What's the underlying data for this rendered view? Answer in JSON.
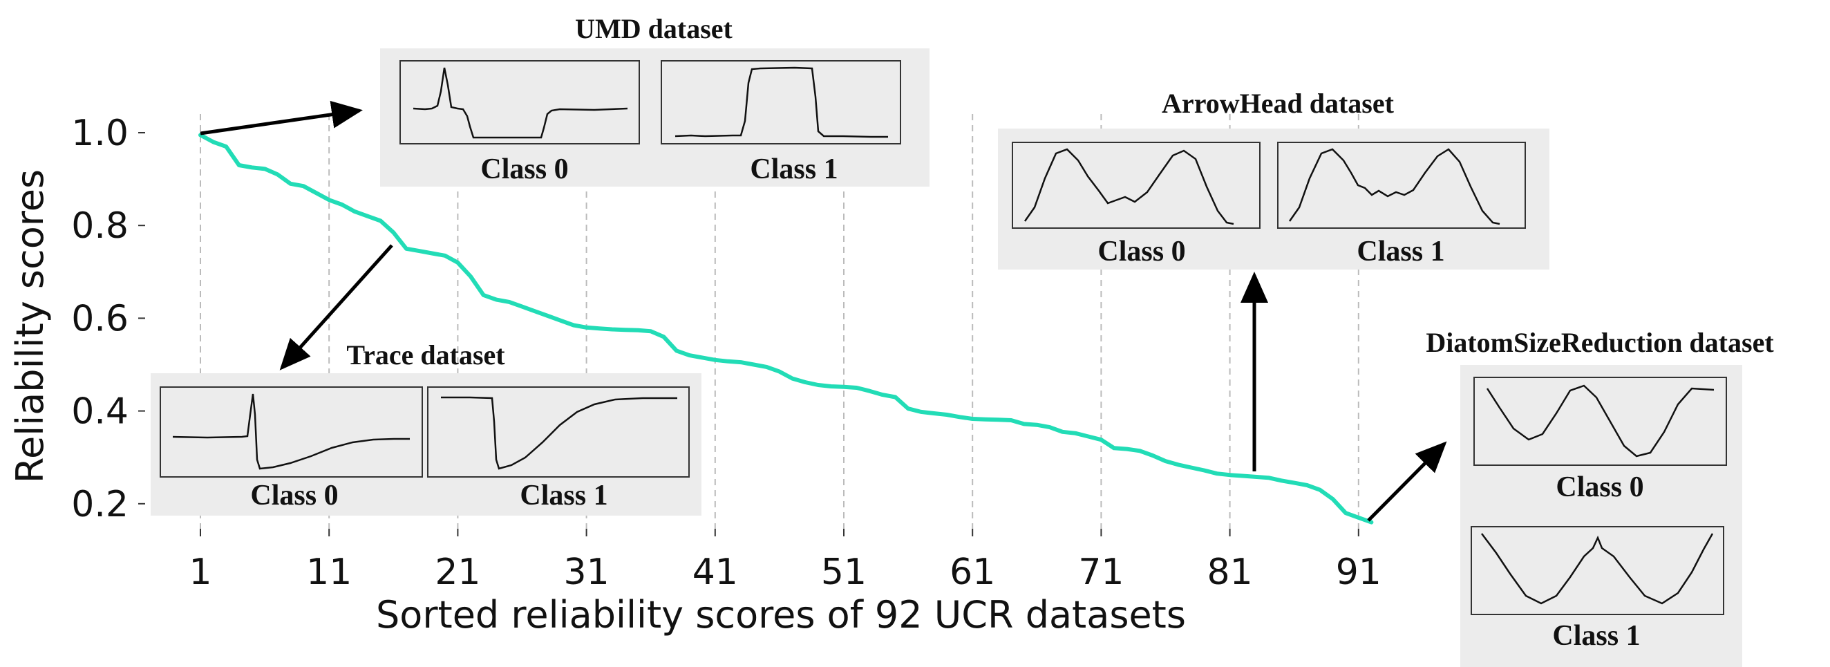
{
  "chart_data": {
    "type": "line",
    "title": "",
    "xlabel": "Sorted reliability scores of 92 UCR datasets",
    "ylabel": "Reliability scores",
    "xlim": [
      -2,
      96
    ],
    "ylim": [
      0.15,
      1.07
    ],
    "grid": "vertical dashed",
    "x_ticks": [
      1,
      11,
      21,
      31,
      41,
      51,
      61,
      71,
      81,
      91
    ],
    "x_tick_labels": [
      "1",
      "11",
      "21",
      "31",
      "41",
      "51",
      "61",
      "71",
      "81",
      "91"
    ],
    "y_ticks": [
      0.2,
      0.4,
      0.6,
      0.8,
      1.0
    ],
    "y_tick_labels": [
      "0.2",
      "0.4",
      "0.6",
      "0.8",
      "1.0"
    ],
    "series": [
      {
        "name": "reliability",
        "color": "#22dcb6",
        "x": [
          1,
          2,
          3,
          4,
          5,
          6,
          7,
          8,
          9,
          10,
          11,
          12,
          13,
          14,
          15,
          16,
          17,
          18,
          19,
          20,
          21,
          22,
          23,
          24,
          25,
          26,
          27,
          28,
          29,
          30,
          31,
          32,
          33,
          34,
          35,
          36,
          37,
          38,
          39,
          40,
          41,
          42,
          43,
          44,
          45,
          46,
          47,
          48,
          49,
          50,
          51,
          52,
          53,
          54,
          55,
          56,
          57,
          58,
          59,
          60,
          61,
          62,
          63,
          64,
          65,
          66,
          67,
          68,
          69,
          70,
          71,
          72,
          73,
          74,
          75,
          76,
          77,
          78,
          79,
          80,
          81,
          82,
          83,
          84,
          85,
          86,
          87,
          88,
          89,
          90,
          91,
          92
        ],
        "values": [
          0.995,
          0.98,
          0.97,
          0.93,
          0.925,
          0.922,
          0.91,
          0.89,
          0.885,
          0.87,
          0.855,
          0.845,
          0.83,
          0.82,
          0.81,
          0.785,
          0.75,
          0.745,
          0.74,
          0.735,
          0.72,
          0.69,
          0.65,
          0.64,
          0.635,
          0.625,
          0.615,
          0.605,
          0.595,
          0.585,
          0.58,
          0.578,
          0.576,
          0.575,
          0.574,
          0.572,
          0.56,
          0.53,
          0.52,
          0.515,
          0.51,
          0.507,
          0.505,
          0.5,
          0.495,
          0.485,
          0.47,
          0.462,
          0.456,
          0.453,
          0.452,
          0.45,
          0.443,
          0.435,
          0.43,
          0.405,
          0.398,
          0.395,
          0.392,
          0.387,
          0.383,
          0.382,
          0.381,
          0.38,
          0.372,
          0.37,
          0.365,
          0.355,
          0.352,
          0.345,
          0.338,
          0.32,
          0.318,
          0.314,
          0.304,
          0.292,
          0.284,
          0.278,
          0.272,
          0.265,
          0.262,
          0.26,
          0.258,
          0.256,
          0.25,
          0.245,
          0.24,
          0.23,
          0.21,
          0.18,
          0.17,
          0.16
        ]
      }
    ]
  },
  "insets": {
    "umd": {
      "title": "UMD dataset",
      "class0": "Class 0",
      "class1": "Class 1"
    },
    "trace": {
      "title": "Trace dataset",
      "class0": "Class 0",
      "class1": "Class 1"
    },
    "arrowhead": {
      "title": "ArrowHead dataset",
      "class0": "Class 0",
      "class1": "Class 1"
    },
    "diatom": {
      "title": "DiatomSizeReduction dataset",
      "class0": "Class 0",
      "class1": "Class 1"
    }
  },
  "colors": {
    "line": "#22dcb6",
    "inset_bg": "#ececec",
    "grid": "#bbbbbb"
  }
}
